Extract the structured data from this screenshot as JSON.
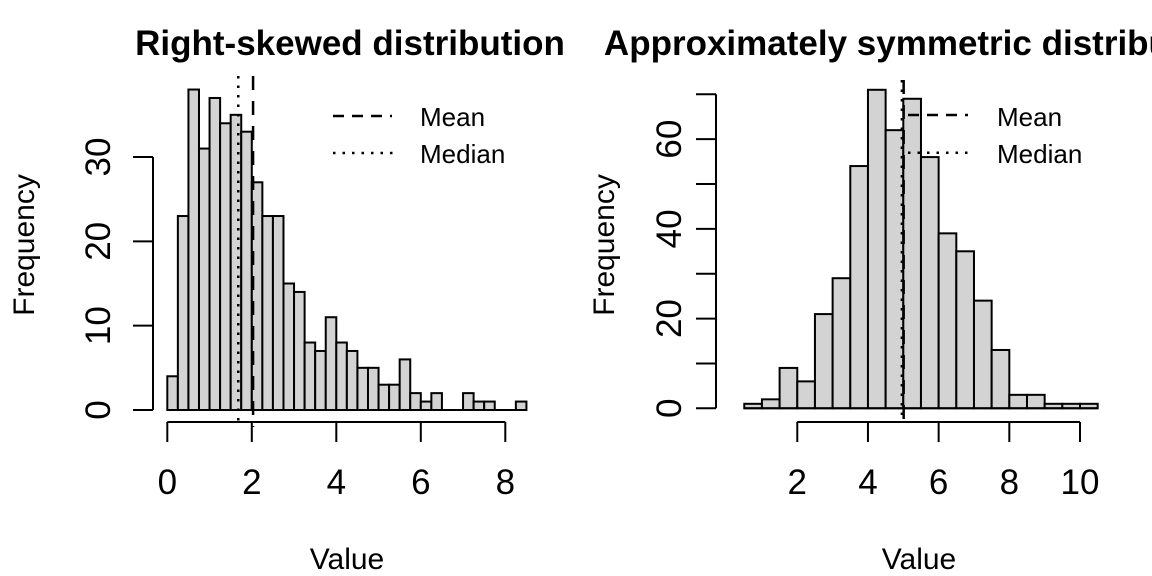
{
  "titles": {
    "left": "Right-skewed distribution",
    "right": "Approximately symmetric distribution"
  },
  "axis_labels": {
    "x": "Value",
    "y": "Frequency"
  },
  "legend": {
    "mean": "Mean",
    "median": "Median"
  },
  "colors": {
    "background": "#ffffff",
    "bar_fill": "#d3d3d3",
    "bar_stroke": "#000000",
    "line": "#000000",
    "text": "#000000"
  },
  "chart_data": [
    {
      "type": "bar",
      "subtype": "histogram",
      "title": "Right-skewed distribution",
      "xlabel": "Value",
      "ylabel": "Frequency",
      "bin_start": 0,
      "bin_width": 0.25,
      "counts": [
        4,
        23,
        38,
        31,
        37,
        34,
        35,
        33,
        27,
        23,
        23,
        15,
        14,
        8,
        7,
        11,
        8,
        7,
        5,
        5,
        3,
        3,
        6,
        2,
        1,
        2,
        0,
        0,
        2,
        1,
        1,
        0,
        0,
        1
      ],
      "x_ticks": [
        0,
        2,
        4,
        6,
        8
      ],
      "y_ticks": [
        0,
        10,
        20,
        30
      ],
      "y_minor_ticks": [],
      "xlim": [
        0,
        8.5
      ],
      "ylim": [
        0,
        38
      ],
      "mean": 2.03,
      "median": 1.68,
      "legend": [
        "Mean",
        "Median"
      ],
      "legend_position": "topright",
      "grid": false
    },
    {
      "type": "bar",
      "subtype": "histogram",
      "title": "Approximately symmetric distribution",
      "xlabel": "Value",
      "ylabel": "Frequency",
      "bin_start": 0.5,
      "bin_width": 0.5,
      "counts": [
        1,
        2,
        9,
        6,
        21,
        29,
        54,
        71,
        62,
        69,
        56,
        39,
        35,
        24,
        13,
        3,
        3,
        1,
        1,
        1
      ],
      "x_ticks": [
        2,
        4,
        6,
        8,
        10
      ],
      "y_ticks": [
        0,
        20,
        40,
        60
      ],
      "y_minor_ticks": [
        10,
        30,
        50,
        70
      ],
      "xlim": [
        0.5,
        10.5
      ],
      "ylim": [
        0,
        71
      ],
      "mean": 5.01,
      "median": 4.96,
      "legend": [
        "Mean",
        "Median"
      ],
      "legend_position": "topright",
      "grid": false
    }
  ]
}
